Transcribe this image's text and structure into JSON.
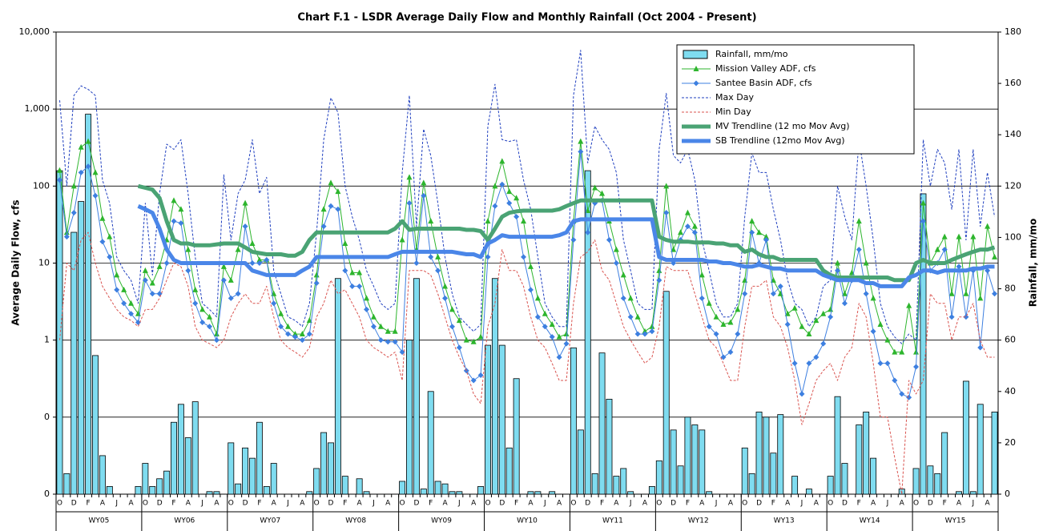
{
  "chart_data": {
    "type": "combo",
    "title": "Chart F.1 - LSDR Average Daily Flow and Monthly Rainfall (Oct 2004 - Present)",
    "ylabel": "Average Daily Flow, cfs",
    "y2label": "Rainfall, mm/mo",
    "log_y": true,
    "grid": true,
    "legend": "upper right",
    "ylim": [
      0.01,
      10000
    ],
    "yticks": [
      {
        "value": 0.01,
        "label": "0"
      },
      {
        "value": 0.1,
        "label": "0"
      },
      1,
      10,
      100,
      {
        "value": 1000,
        "label": "1,000"
      },
      {
        "value": 10000,
        "label": "10,000"
      }
    ],
    "y2lim": [
      0,
      180
    ],
    "y2ticks": [
      0,
      20,
      40,
      60,
      80,
      100,
      120,
      140,
      160,
      180
    ],
    "categories": [
      "O",
      null,
      "D",
      null,
      "F",
      null,
      "A",
      null,
      "J",
      null,
      "A",
      null,
      "O",
      null,
      "D",
      null,
      "F",
      null,
      "A",
      null,
      "J",
      null,
      "A",
      null,
      "O",
      null,
      "D",
      null,
      "F",
      null,
      "A",
      null,
      "J",
      null,
      "A",
      null,
      "O",
      null,
      "D",
      null,
      "F",
      null,
      "A",
      null,
      "J",
      null,
      "A",
      null,
      "O",
      null,
      "D",
      null,
      "F",
      null,
      "A",
      null,
      "J",
      null,
      "A",
      null,
      "O",
      null,
      "D",
      null,
      "F",
      null,
      "A",
      null,
      "J",
      null,
      "A",
      null,
      "O",
      null,
      "D",
      null,
      "F",
      null,
      "A",
      null,
      "J",
      null,
      "A",
      null,
      "O",
      null,
      "D",
      null,
      "F",
      null,
      "A",
      null,
      "J",
      null,
      "A",
      null,
      "O",
      null,
      "D",
      null,
      "F",
      null,
      "A",
      null,
      "J",
      null,
      "A",
      null,
      "O",
      null,
      "D",
      null,
      "F",
      null,
      "A",
      null,
      "J",
      null,
      "A",
      null,
      "O",
      null,
      "D",
      null,
      "F",
      null,
      "A",
      null,
      "J",
      null,
      "A",
      null
    ],
    "groups": [
      "WY05",
      "WY06",
      "WY07",
      "WY08",
      "WY09",
      "WY10",
      "WY11",
      "WY12",
      "WY13",
      "WY14",
      "WY15"
    ],
    "series": [
      {
        "name": "Rainfall, mm/mo",
        "type": "bar",
        "axis": "y2",
        "color": "#7fdcf0",
        "values": [
          126,
          8,
          102,
          114,
          148,
          54,
          15,
          3,
          0,
          0,
          0,
          3,
          12,
          3,
          6,
          9,
          28,
          35,
          22,
          36,
          0,
          1,
          1,
          0,
          20,
          4,
          18,
          14,
          28,
          3,
          12,
          0,
          0,
          0,
          0,
          1,
          10,
          24,
          20,
          84,
          7,
          0,
          6,
          1,
          0,
          0,
          0,
          0,
          5,
          60,
          84,
          2,
          40,
          5,
          4,
          1,
          1,
          0,
          0,
          3,
          58,
          84,
          58,
          18,
          45,
          0,
          1,
          1,
          0,
          1,
          0,
          0,
          57,
          25,
          126,
          8,
          55,
          37,
          7,
          10,
          1,
          0,
          0,
          3,
          13,
          79,
          25,
          11,
          30,
          27,
          25,
          1,
          0,
          0,
          0,
          0,
          18,
          8,
          32,
          30,
          16,
          31,
          0,
          7,
          0,
          2,
          0,
          0,
          7,
          38,
          12,
          0,
          27,
          32,
          14,
          0,
          0,
          0,
          2,
          0,
          10,
          117,
          11,
          8,
          24,
          0,
          1,
          44,
          1,
          35,
          0,
          32
        ]
      },
      {
        "name": "Mission Valley ADF, cfs",
        "type": "line",
        "marker": "triangle",
        "color": "#2db52d",
        "width": 1,
        "values": [
          160,
          25,
          100,
          320,
          380,
          150,
          38,
          22,
          7,
          4.5,
          3,
          2.2,
          8,
          5.5,
          9,
          20,
          65,
          50,
          15,
          4.5,
          2.5,
          2,
          1.2,
          9,
          6,
          15,
          60,
          18,
          11,
          11,
          4,
          2.2,
          1.5,
          1.2,
          1.2,
          1.8,
          7,
          50,
          110,
          85,
          18,
          7.5,
          7.5,
          3.5,
          2,
          1.5,
          1.3,
          1.3,
          20,
          130,
          15,
          110,
          35,
          12,
          5,
          2.5,
          1.8,
          1,
          0.95,
          1.1,
          35,
          100,
          210,
          85,
          70,
          35,
          9,
          3.5,
          2.2,
          1.6,
          1.1,
          1.2,
          35,
          380,
          48,
          95,
          80,
          35,
          15,
          7,
          3.5,
          2,
          1.3,
          1.5,
          8,
          100,
          15,
          25,
          45,
          30,
          7,
          3,
          2,
          1.6,
          1.7,
          2.5,
          6,
          35,
          25,
          22,
          6,
          4,
          2.2,
          2.6,
          1.5,
          1.2,
          1.8,
          2.2,
          2.5,
          10,
          4,
          7.5,
          35,
          10,
          3.5,
          1.6,
          1,
          0.7,
          0.7,
          2.8,
          0.7,
          60,
          10,
          15,
          22,
          4,
          22,
          4,
          22,
          3.5,
          30,
          12
        ]
      },
      {
        "name": "Santee Basin ADF, cfs",
        "type": "line",
        "marker": "diamond",
        "color": "#3d7fe0",
        "width": 1,
        "values": [
          120,
          22,
          45,
          150,
          180,
          75,
          19,
          12,
          4.5,
          3,
          2.2,
          1.7,
          6,
          4,
          4,
          10,
          35,
          33,
          8,
          3,
          1.7,
          1.5,
          1,
          6,
          3.5,
          4,
          30,
          10,
          10,
          11,
          3,
          1.5,
          1.2,
          1.1,
          1,
          1.2,
          5.5,
          30,
          55,
          50,
          8,
          5,
          5,
          2.5,
          1.5,
          1,
          0.95,
          0.95,
          0.7,
          60,
          10,
          75,
          12,
          8,
          3.5,
          1.5,
          0.8,
          0.4,
          0.3,
          0.35,
          12,
          55,
          105,
          60,
          40,
          12,
          4.5,
          2,
          1.5,
          1.1,
          0.6,
          0.9,
          20,
          280,
          25,
          60,
          65,
          20,
          10,
          3.5,
          2,
          1.2,
          1.2,
          1.3,
          6,
          45,
          10,
          20,
          30,
          25,
          3.5,
          1.5,
          1.2,
          0.6,
          0.7,
          1.2,
          4,
          25,
          10,
          20,
          4,
          5,
          1.6,
          0.5,
          0.2,
          0.5,
          0.6,
          0.9,
          2,
          8,
          3,
          6,
          15,
          4,
          1.3,
          0.5,
          0.5,
          0.3,
          0.2,
          0.18,
          0.45,
          35,
          8,
          10,
          15,
          2,
          9,
          2,
          8,
          0.8,
          8,
          4
        ]
      },
      {
        "name": "Max Day",
        "type": "line",
        "dash": true,
        "color": "#1f3fbf",
        "width": 1,
        "values": [
          1300,
          100,
          1500,
          2000,
          1800,
          1500,
          120,
          60,
          12,
          8,
          6,
          3,
          60,
          7,
          80,
          350,
          300,
          400,
          80,
          12,
          3,
          2.5,
          2,
          140,
          20,
          80,
          120,
          400,
          80,
          130,
          8,
          4,
          2,
          1.8,
          1.5,
          3,
          25,
          400,
          1400,
          900,
          100,
          40,
          20,
          8,
          5,
          3,
          2.5,
          3,
          150,
          1500,
          30,
          550,
          250,
          60,
          12,
          4,
          2,
          1.6,
          1.3,
          1.6,
          600,
          2100,
          400,
          380,
          400,
          120,
          50,
          12,
          3,
          2,
          1.5,
          1.5,
          1500,
          5800,
          200,
          600,
          400,
          300,
          150,
          20,
          8,
          3,
          2.5,
          2.5,
          300,
          1600,
          250,
          200,
          300,
          120,
          20,
          8,
          3,
          2,
          2,
          3,
          40,
          270,
          150,
          150,
          50,
          20,
          6,
          3,
          2.5,
          1.5,
          2,
          5,
          6,
          100,
          40,
          20,
          400,
          100,
          20,
          3,
          1.5,
          1.1,
          0.9,
          1.2,
          1,
          400,
          100,
          300,
          200,
          50,
          300,
          20,
          300,
          30,
          150,
          40
        ]
      },
      {
        "name": "Min Day",
        "type": "line",
        "dash": true,
        "color": "#d9534f",
        "width": 1,
        "values": [
          1,
          10,
          8,
          20,
          25,
          10,
          5,
          3.5,
          2.5,
          2,
          1.8,
          1.5,
          2.5,
          2.5,
          3.5,
          6,
          10,
          9,
          5,
          1.5,
          1,
          0.9,
          0.8,
          1,
          2,
          3,
          4,
          3,
          3,
          5,
          2,
          1,
          0.8,
          0.7,
          0.6,
          0.8,
          2,
          3,
          6,
          4,
          4.5,
          3,
          2,
          1,
          0.8,
          0.7,
          0.6,
          0.7,
          0.3,
          8,
          8,
          8,
          7,
          4,
          2,
          1,
          0.6,
          0.4,
          0.2,
          0.15,
          1.5,
          3,
          15,
          8,
          8,
          5,
          2,
          1,
          0.8,
          0.5,
          0.3,
          0.3,
          3,
          12,
          14,
          20,
          8,
          6,
          3,
          1.5,
          1,
          0.7,
          0.5,
          0.6,
          1.5,
          9,
          8,
          8,
          8,
          4,
          2,
          1,
          0.8,
          0.5,
          0.3,
          0.3,
          1.5,
          5,
          5,
          6,
          2,
          1.5,
          0.8,
          0.3,
          0.08,
          0.15,
          0.3,
          0.4,
          0.5,
          0.3,
          0.6,
          0.8,
          3,
          2,
          0.5,
          0.1,
          0.1,
          0.03,
          0.01,
          0.3,
          0.2,
          0.3,
          4,
          3,
          3,
          1,
          2,
          2,
          3,
          1,
          0.6,
          0.6
        ]
      },
      {
        "name": "MV Trendline (12 mo Mov Avg)",
        "type": "line",
        "color": "#4aa374",
        "width": 5,
        "values": [
          null,
          null,
          null,
          null,
          null,
          null,
          null,
          null,
          null,
          null,
          null,
          100,
          95,
          90,
          70,
          35,
          20,
          18,
          18,
          17,
          17,
          17,
          17.5,
          18,
          18,
          18,
          16,
          14,
          13.5,
          13,
          13,
          13,
          12.5,
          12.5,
          14,
          20,
          25,
          25,
          25,
          25,
          25,
          25,
          25,
          25,
          25,
          25,
          25,
          28,
          35,
          27,
          28,
          28,
          28,
          28,
          28,
          28,
          28,
          27,
          27,
          26,
          20,
          28,
          40,
          45,
          47,
          48,
          48,
          48,
          48,
          48,
          50,
          55,
          60,
          65,
          65,
          65,
          65,
          65,
          65,
          65,
          65,
          65,
          65,
          65,
          22,
          20,
          19,
          19,
          19,
          18.5,
          18.5,
          18.5,
          18,
          18,
          17,
          17,
          14,
          15,
          13,
          12,
          12,
          11,
          11,
          11,
          11,
          11,
          11,
          8,
          7,
          6.5,
          6.5,
          6.5,
          6.5,
          6.5,
          6.5,
          6.5,
          6.5,
          6,
          6,
          6,
          10,
          11,
          10,
          10,
          10,
          11,
          12,
          13,
          14,
          15,
          15,
          16
        ]
      },
      {
        "name": "SB Trendline (12mo Mov Avg)",
        "type": "line",
        "color": "#4a86e8",
        "width": 5,
        "values": [
          null,
          null,
          null,
          null,
          null,
          null,
          null,
          null,
          null,
          null,
          null,
          55,
          50,
          45,
          28,
          15,
          11,
          10,
          10,
          10,
          10,
          10,
          10,
          10,
          10,
          10,
          10,
          8,
          7.5,
          7,
          7,
          7,
          7,
          7,
          8,
          9,
          12,
          12,
          12,
          12,
          12,
          12,
          12,
          12,
          12,
          12,
          12,
          13,
          14,
          14,
          14,
          14,
          14,
          14,
          14,
          14,
          13.5,
          13,
          13,
          12,
          18,
          20,
          23,
          22,
          22,
          22,
          22,
          22,
          22,
          22,
          23,
          25,
          35,
          37,
          37,
          37,
          37,
          37,
          37,
          37,
          37,
          37,
          37,
          37,
          12,
          11,
          11,
          11,
          11,
          11,
          11,
          10.5,
          10.5,
          10,
          10,
          9.5,
          9,
          9,
          9.5,
          9,
          8.5,
          8.5,
          8,
          8,
          8,
          8,
          8,
          7,
          6.5,
          6,
          6,
          6,
          6,
          5.5,
          5.5,
          5,
          5,
          5,
          5,
          6.5,
          7,
          8,
          8,
          7.5,
          8,
          8,
          8,
          8,
          8.5,
          8.5,
          9,
          9
        ]
      }
    ]
  }
}
